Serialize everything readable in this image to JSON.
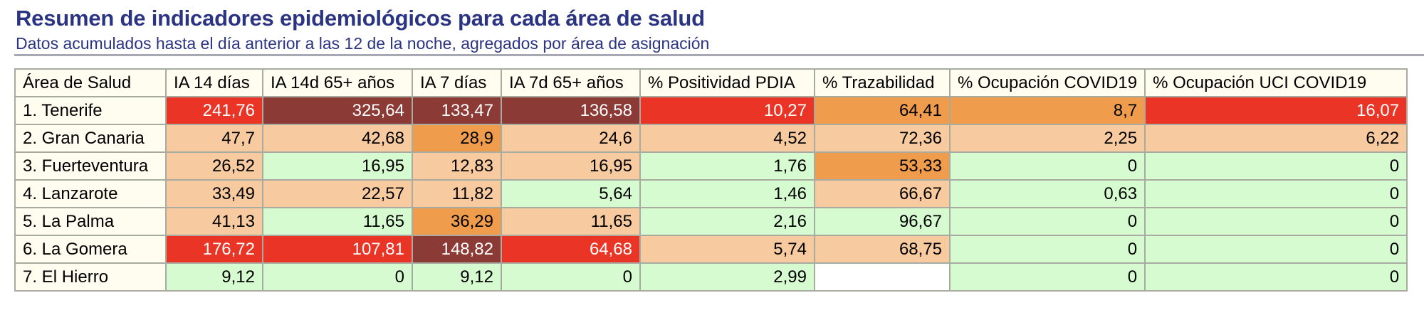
{
  "header": {
    "title": "Resumen de indicadores epidemiológicos para cada área de salud",
    "subtitle": "Datos acumulados hasta el día anterior a las 12 de la noche, agregados por área de asignación"
  },
  "colors": {
    "title_text": "#2b3483",
    "header_bg": "#fffdf0",
    "green": "#d7fbd0",
    "peach": "#f7caa0",
    "orange": "#ef9c4c",
    "red": "#e93426",
    "darkred": "#8c3a36",
    "border": "#a8aba0"
  },
  "table": {
    "columns": [
      "Área de Salud",
      "IA 14 días",
      "IA 14d 65+ años",
      "IA 7 días",
      "IA 7d 65+ años",
      "% Positividad PDIA",
      "% Trazabilidad",
      "% Ocupación COVID19",
      "% Ocupación UCI COVID19"
    ],
    "rows": [
      {
        "area": "1. Tenerife",
        "cells": [
          {
            "v": "241,76",
            "c": "red"
          },
          {
            "v": "325,64",
            "c": "darkred"
          },
          {
            "v": "133,47",
            "c": "darkred"
          },
          {
            "v": "136,58",
            "c": "darkred"
          },
          {
            "v": "10,27",
            "c": "red"
          },
          {
            "v": "64,41",
            "c": "orange"
          },
          {
            "v": "8,7",
            "c": "orange"
          },
          {
            "v": "16,07",
            "c": "red"
          }
        ]
      },
      {
        "area": "2. Gran Canaria",
        "cells": [
          {
            "v": "47,7",
            "c": "peach"
          },
          {
            "v": "42,68",
            "c": "peach"
          },
          {
            "v": "28,9",
            "c": "orange"
          },
          {
            "v": "24,6",
            "c": "peach"
          },
          {
            "v": "4,52",
            "c": "peach"
          },
          {
            "v": "72,36",
            "c": "peach"
          },
          {
            "v": "2,25",
            "c": "peach"
          },
          {
            "v": "6,22",
            "c": "peach"
          }
        ]
      },
      {
        "area": "3. Fuerteventura",
        "cells": [
          {
            "v": "26,52",
            "c": "peach"
          },
          {
            "v": "16,95",
            "c": "green"
          },
          {
            "v": "12,83",
            "c": "peach"
          },
          {
            "v": "16,95",
            "c": "peach"
          },
          {
            "v": "1,76",
            "c": "green"
          },
          {
            "v": "53,33",
            "c": "orange"
          },
          {
            "v": "0",
            "c": "green"
          },
          {
            "v": "0",
            "c": "green"
          }
        ]
      },
      {
        "area": "4. Lanzarote",
        "cells": [
          {
            "v": "33,49",
            "c": "peach"
          },
          {
            "v": "22,57",
            "c": "peach"
          },
          {
            "v": "11,82",
            "c": "peach"
          },
          {
            "v": "5,64",
            "c": "green"
          },
          {
            "v": "1,46",
            "c": "green"
          },
          {
            "v": "66,67",
            "c": "peach"
          },
          {
            "v": "0,63",
            "c": "green"
          },
          {
            "v": "0",
            "c": "green"
          }
        ]
      },
      {
        "area": "5. La Palma",
        "cells": [
          {
            "v": "41,13",
            "c": "peach"
          },
          {
            "v": "11,65",
            "c": "green"
          },
          {
            "v": "36,29",
            "c": "orange"
          },
          {
            "v": "11,65",
            "c": "peach"
          },
          {
            "v": "2,16",
            "c": "green"
          },
          {
            "v": "96,67",
            "c": "green"
          },
          {
            "v": "0",
            "c": "green"
          },
          {
            "v": "0",
            "c": "green"
          }
        ]
      },
      {
        "area": "6. La Gomera",
        "cells": [
          {
            "v": "176,72",
            "c": "red"
          },
          {
            "v": "107,81",
            "c": "red"
          },
          {
            "v": "148,82",
            "c": "darkred"
          },
          {
            "v": "64,68",
            "c": "red"
          },
          {
            "v": "5,74",
            "c": "peach"
          },
          {
            "v": "68,75",
            "c": "peach"
          },
          {
            "v": "0",
            "c": "green"
          },
          {
            "v": "0",
            "c": "green"
          }
        ]
      },
      {
        "area": "7. El Hierro",
        "cells": [
          {
            "v": "9,12",
            "c": "green"
          },
          {
            "v": "0",
            "c": "green"
          },
          {
            "v": "9,12",
            "c": "green"
          },
          {
            "v": "0",
            "c": "green"
          },
          {
            "v": "2,99",
            "c": "green"
          },
          {
            "v": "",
            "c": "white"
          },
          {
            "v": "0",
            "c": "green"
          },
          {
            "v": "0",
            "c": "green"
          }
        ]
      }
    ]
  }
}
